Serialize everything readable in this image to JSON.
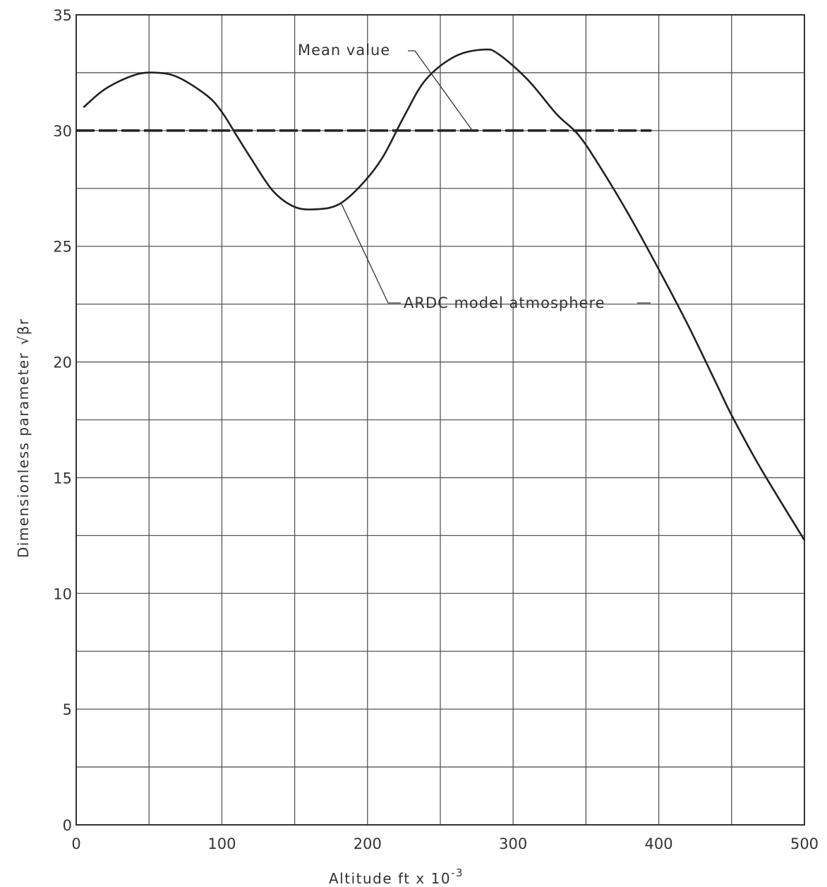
{
  "chart_data": {
    "type": "line",
    "xlabel": "Altitude ft x 10",
    "xlabel_exponent": "-3",
    "ylabel": "Dimensionless parameter",
    "ylabel_symbol": "√βr",
    "xlim": [
      0,
      500
    ],
    "ylim": [
      0,
      35
    ],
    "grid": true,
    "x_ticks": [
      0,
      100,
      200,
      300,
      400,
      500
    ],
    "y_ticks": [
      0,
      5,
      10,
      15,
      20,
      25,
      30,
      35
    ],
    "series": [
      {
        "name": "ARDC model atmosphere",
        "style": "solid",
        "x": [
          5,
          20,
          40,
          55,
          70,
          90,
          100,
          110,
          120,
          135,
          150,
          165,
          180,
          195,
          210,
          225,
          240,
          260,
          280,
          290,
          310,
          330,
          345,
          360,
          380,
          400,
          420,
          440,
          450,
          470,
          500
        ],
        "y": [
          31.0,
          31.8,
          32.4,
          32.5,
          32.3,
          31.5,
          30.8,
          29.8,
          28.8,
          27.4,
          26.7,
          26.6,
          26.8,
          27.6,
          28.8,
          30.6,
          32.2,
          33.2,
          33.5,
          33.3,
          32.2,
          30.7,
          29.8,
          28.4,
          26.3,
          24.0,
          21.6,
          19.0,
          17.7,
          15.4,
          12.3
        ]
      },
      {
        "name": "Mean value",
        "style": "dashed",
        "x": [
          0,
          395
        ],
        "y": [
          30.0,
          30.0
        ]
      }
    ],
    "annotations": [
      {
        "text": "Mean value",
        "points_to": "Mean value"
      },
      {
        "text": "ARDC model atmosphere",
        "points_to": "ARDC model atmosphere"
      }
    ]
  }
}
